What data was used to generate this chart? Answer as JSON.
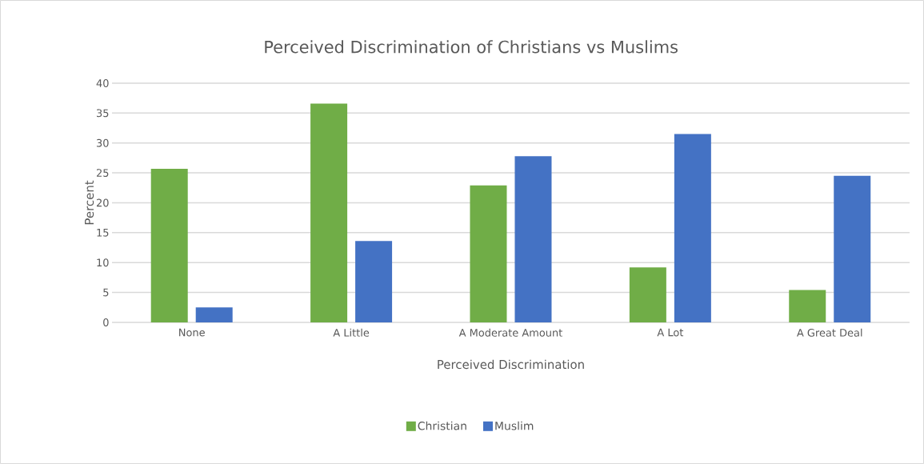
{
  "chart_data": {
    "type": "bar",
    "title": "Perceived Discrimination of Christians vs Muslims",
    "xlabel": "Perceived Discrimination",
    "ylabel": "Percent",
    "categories": [
      "None",
      "A Little",
      "A Moderate Amount",
      "A Lot",
      "A Great Deal"
    ],
    "series": [
      {
        "name": "Christian",
        "color": "#70ad47",
        "values": [
          25.7,
          36.6,
          22.9,
          9.2,
          5.4
        ]
      },
      {
        "name": "Muslim",
        "color": "#4472c4",
        "values": [
          2.5,
          13.6,
          27.8,
          31.5,
          24.5
        ]
      }
    ],
    "ylim": [
      0,
      40
    ],
    "yticks": [
      0,
      5,
      10,
      15,
      20,
      25,
      30,
      35,
      40
    ],
    "grid": "y",
    "legend": "bottom"
  }
}
